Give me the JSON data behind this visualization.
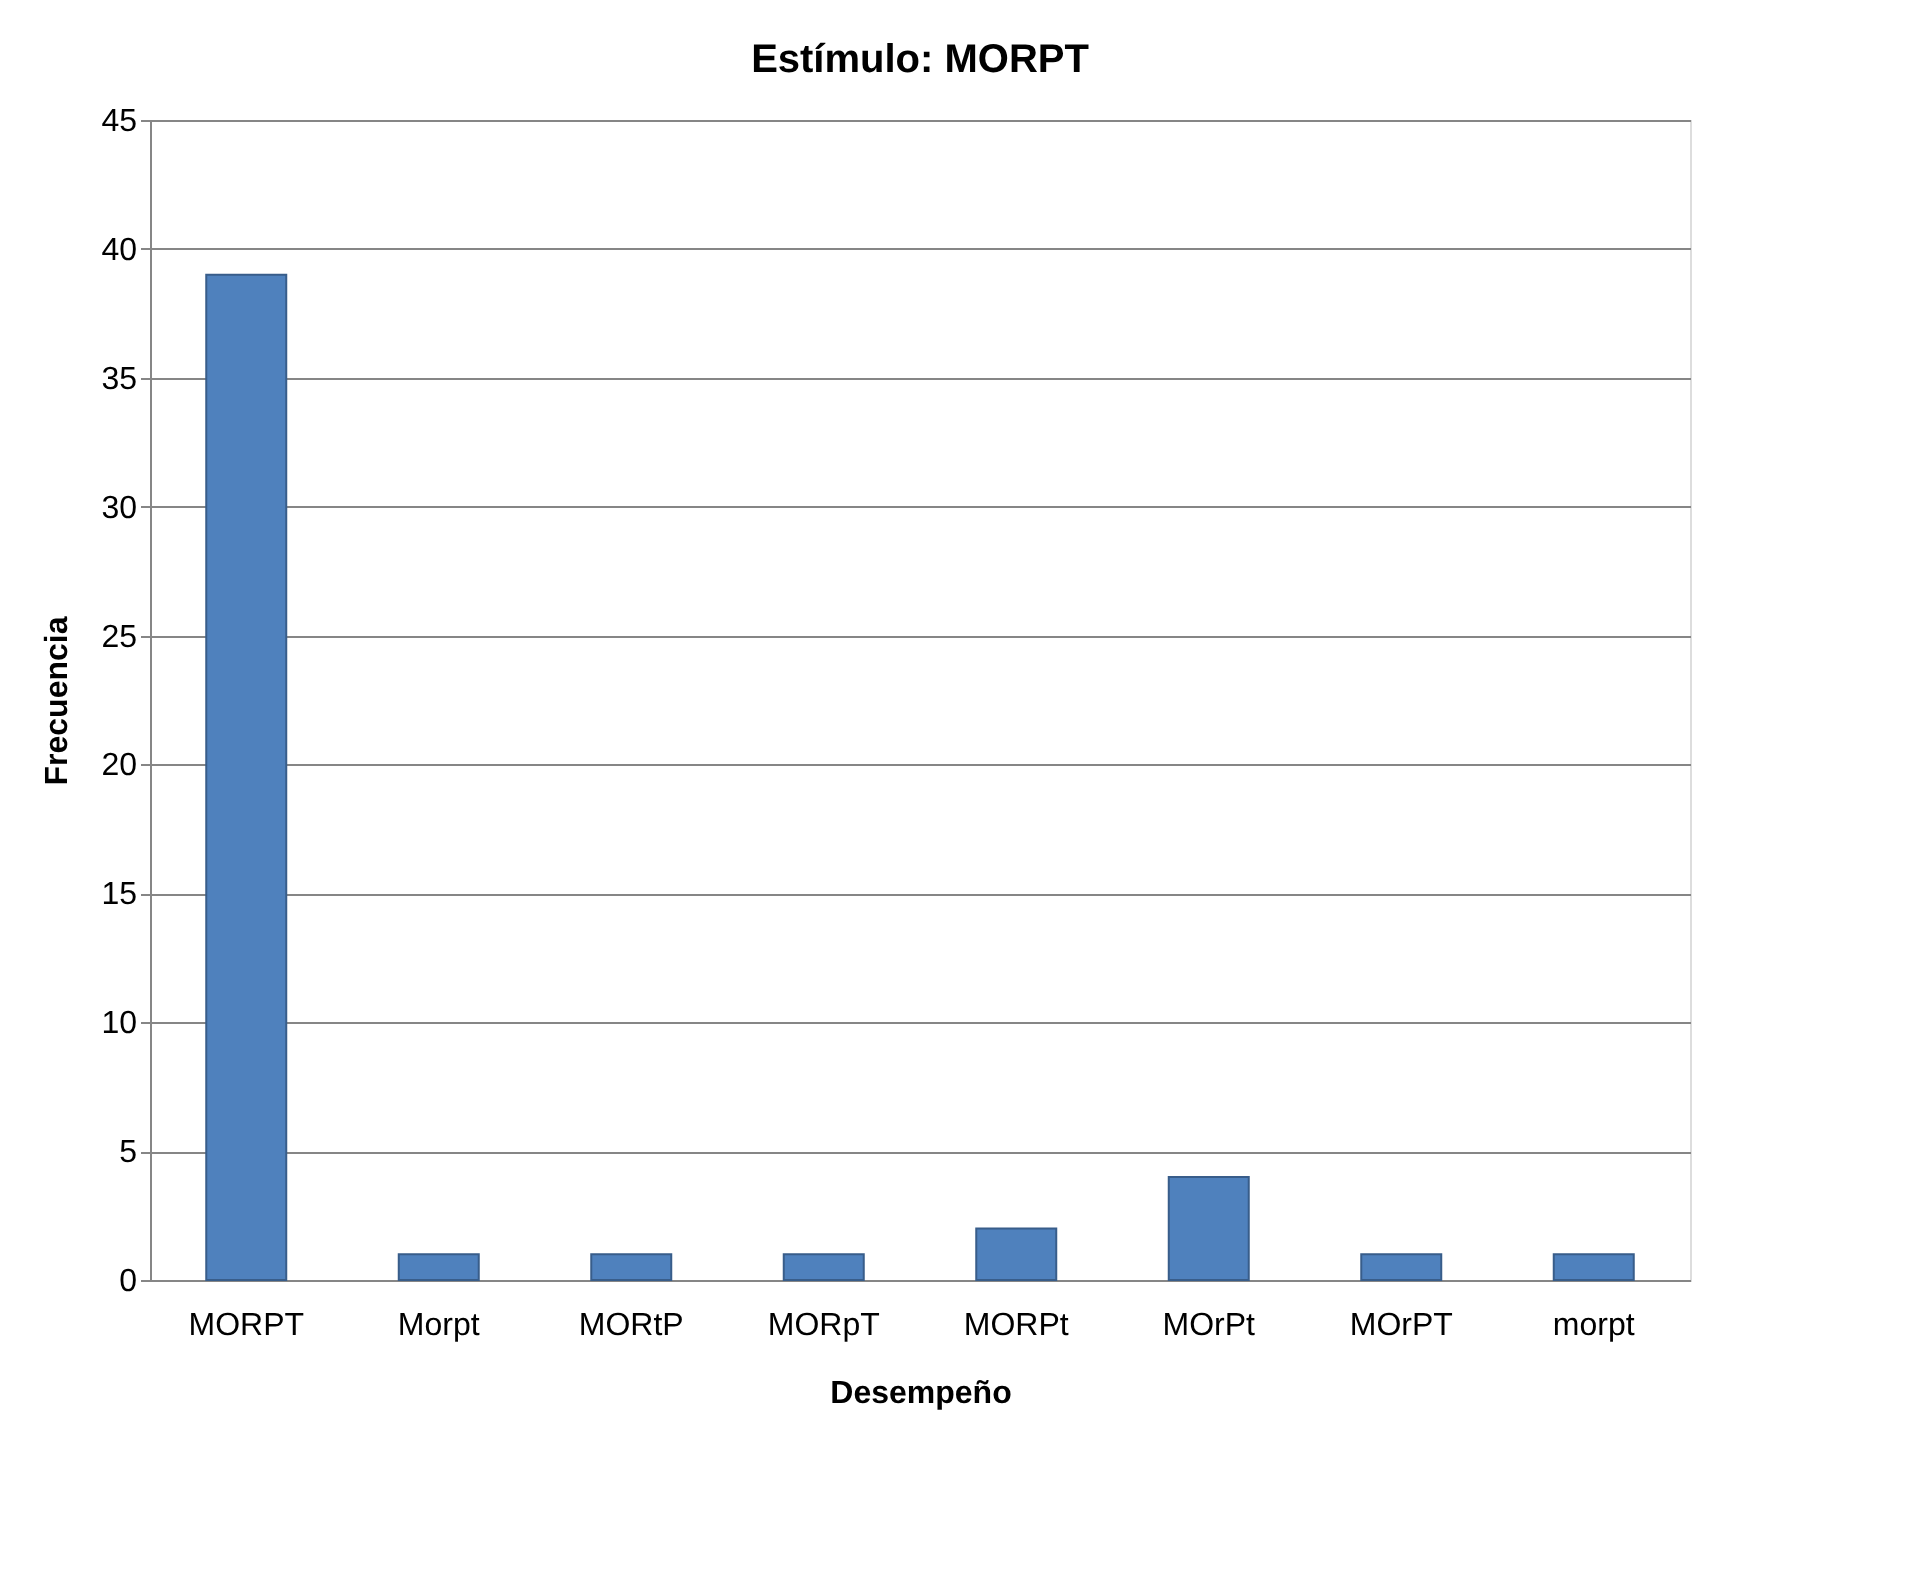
{
  "chart_data": {
    "type": "bar",
    "title": "Estímulo: MORPT",
    "xlabel": "Desempeño",
    "ylabel": "Frecuencia",
    "categories": [
      "MORPT",
      "Morpt",
      "MORtP",
      "MORpT",
      "MORPt",
      "MOrPt",
      "MOrPT",
      "morpt"
    ],
    "values": [
      39,
      1,
      1,
      1,
      2,
      4,
      1,
      1
    ],
    "color": "#4f81bd",
    "ylim": [
      0,
      45
    ],
    "yticks": [
      0,
      5,
      10,
      15,
      20,
      25,
      30,
      35,
      40,
      45
    ],
    "grid": "y"
  }
}
